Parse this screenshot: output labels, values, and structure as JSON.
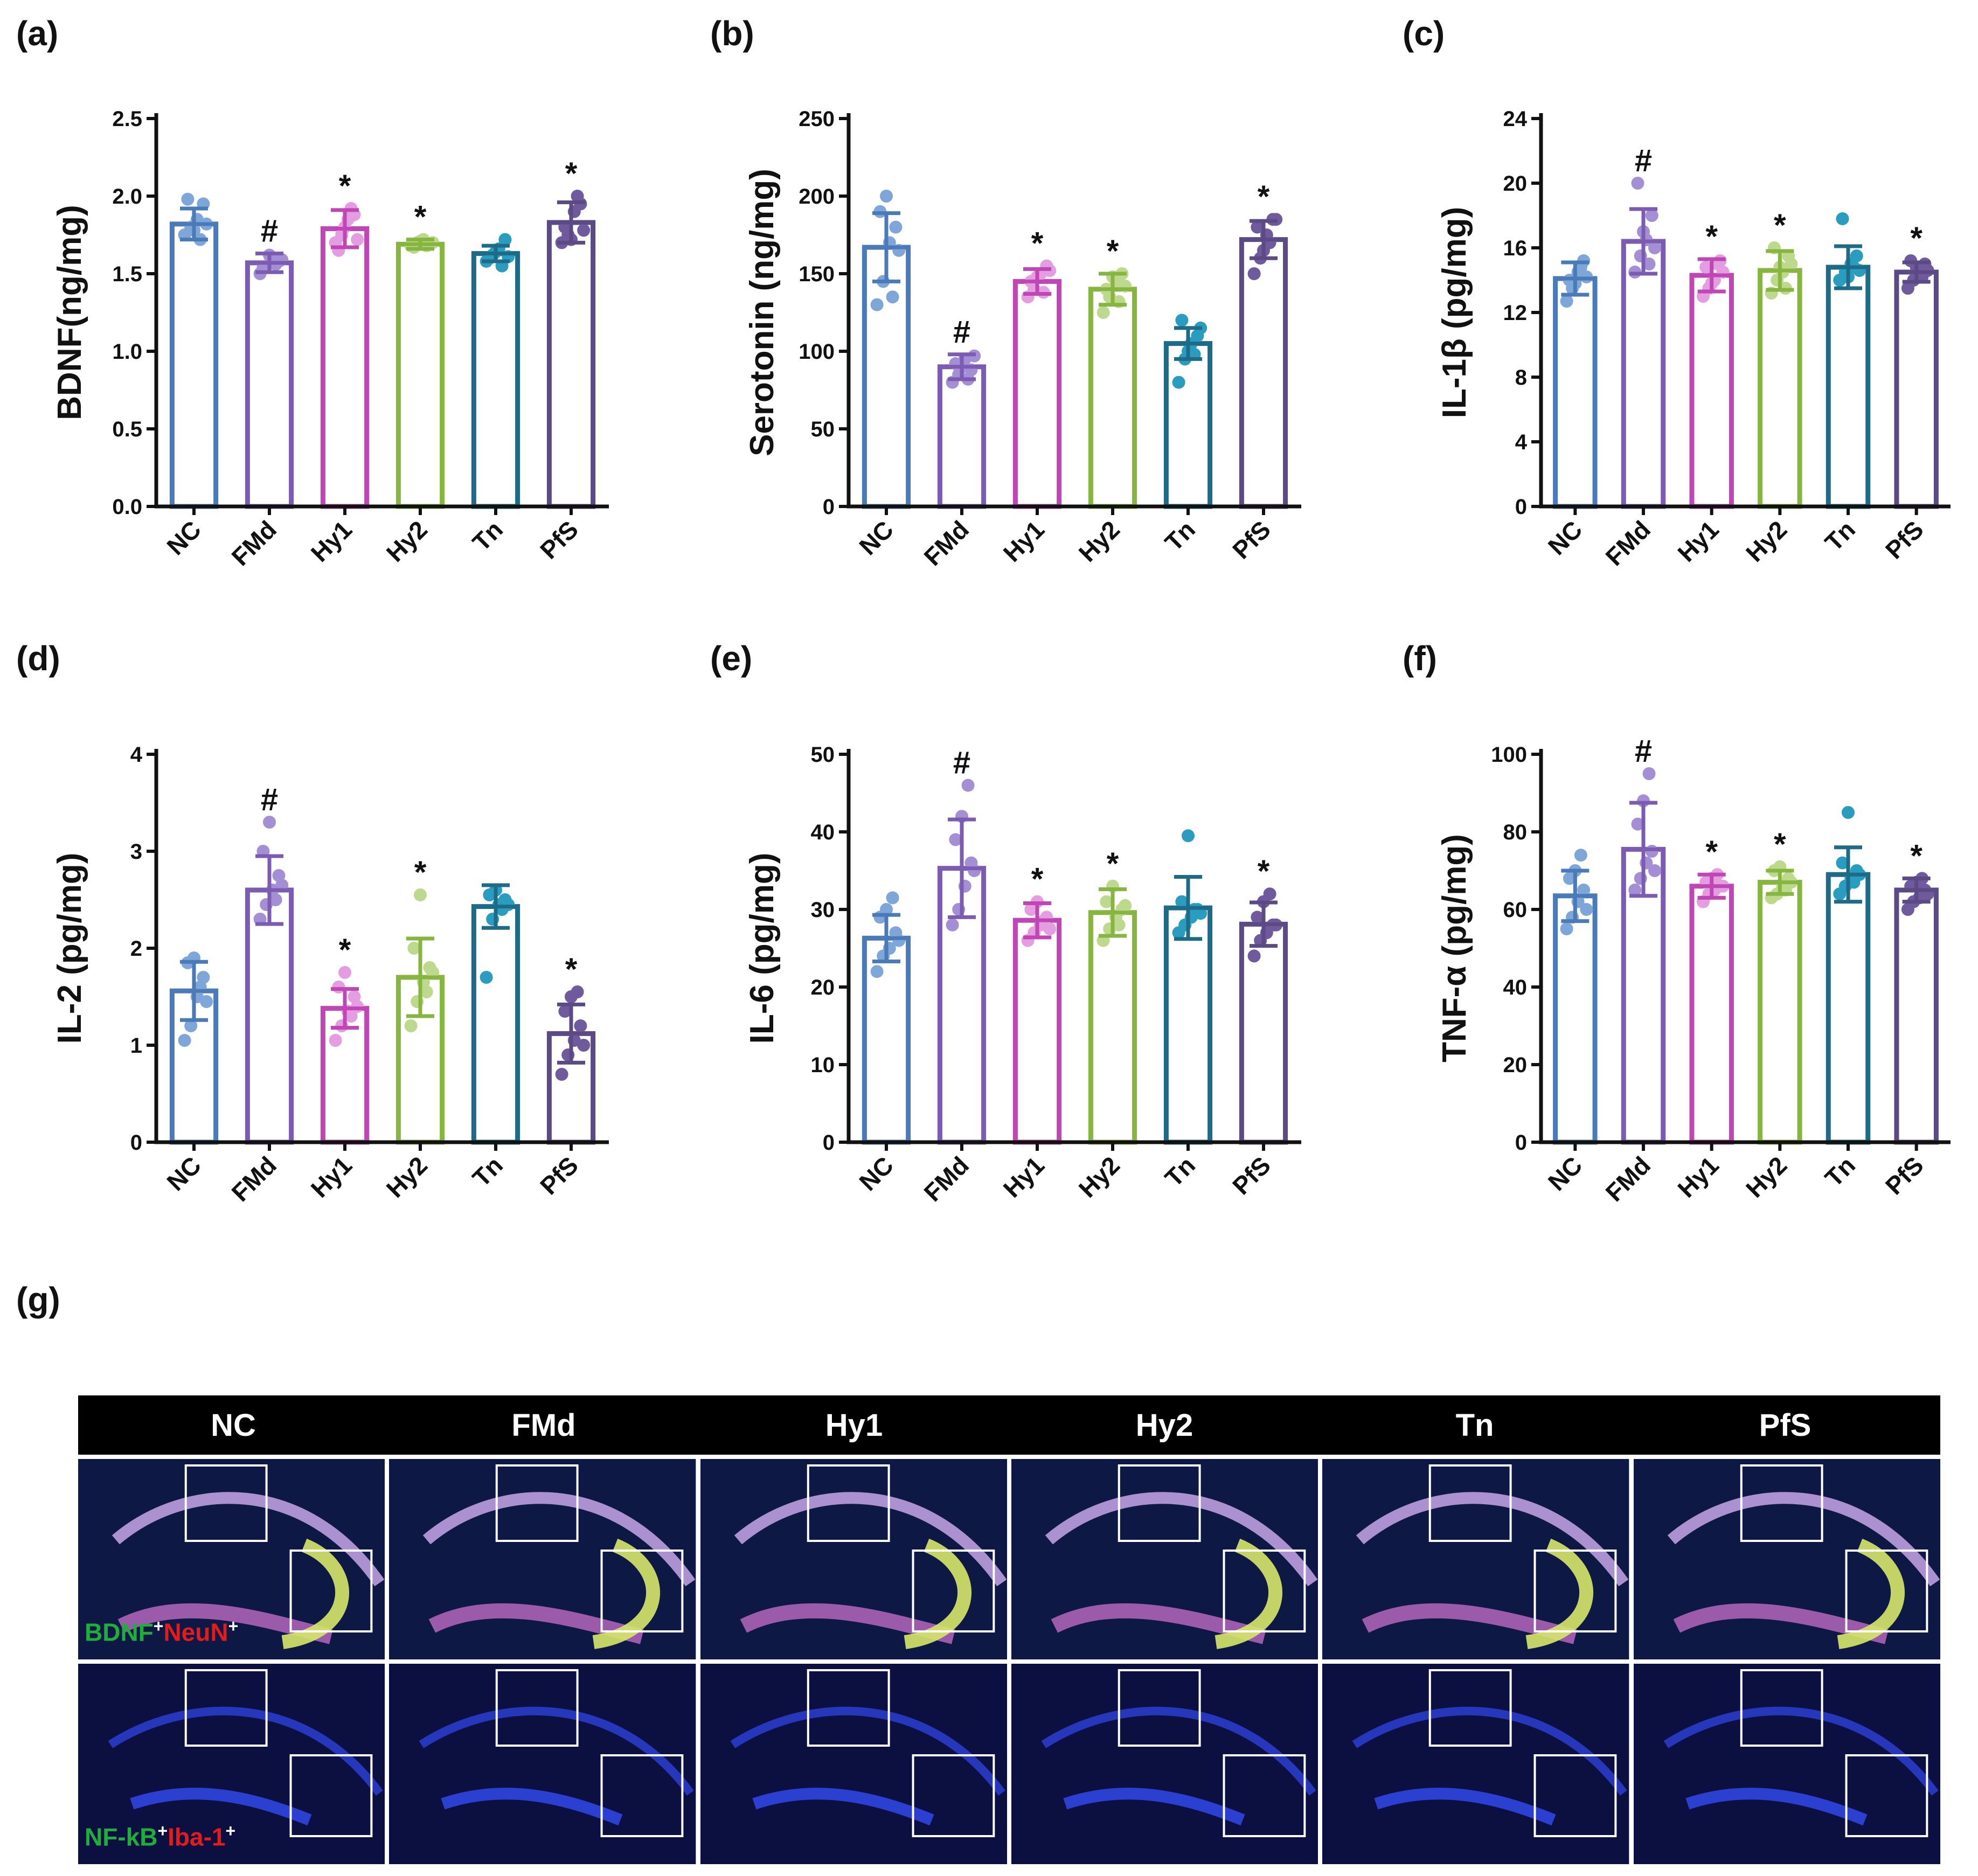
{
  "panels": [
    {
      "letter": "(a)",
      "ylabel": "BDNF(ng/mg)"
    },
    {
      "letter": "(b)",
      "ylabel": "Serotonin (ng/mg)"
    },
    {
      "letter": "(c)",
      "ylabel": "IL-1β (pg/mg)"
    },
    {
      "letter": "(d)",
      "ylabel": "IL-2 (pg/mg)"
    },
    {
      "letter": "(e)",
      "ylabel": "IL-6 (pg/mg)"
    },
    {
      "letter": "(f)",
      "ylabel": "TNF-α (pg/mg)"
    },
    {
      "letter": "(g)"
    }
  ],
  "group_colors": {
    "NC": "#4a7ab7",
    "FMd": "#7c5bb2",
    "Hy1": "#c045b5",
    "Hy2": "#86b640",
    "Tn": "#1e6b88",
    "PfS": "#5c4a85"
  },
  "point_colors": {
    "NC": "#7ea6d8",
    "FMd": "#a58fd4",
    "Hy1": "#e39de0",
    "Hy2": "#bdd98d",
    "Tn": "#2a9cc0",
    "PfS": "#6f5a9e"
  },
  "chart_data": [
    {
      "type": "bar",
      "title": "",
      "ylabel": "BDNF(ng/mg)",
      "categories": [
        "NC",
        "FMd",
        "Hy1",
        "Hy2",
        "Tn",
        "PfS"
      ],
      "values": [
        1.82,
        1.57,
        1.79,
        1.69,
        1.63,
        1.83
      ],
      "errors": [
        0.1,
        0.06,
        0.12,
        0.03,
        0.05,
        0.13
      ],
      "significance": [
        "",
        "#",
        "*",
        "*",
        "",
        "*"
      ],
      "ylim": [
        0,
        2.5
      ],
      "yticks": [
        "0.0",
        "0.5",
        "1.0",
        "1.5",
        "2.0",
        "2.5"
      ],
      "points": [
        [
          1.75,
          1.8,
          1.85,
          1.95,
          1.98,
          1.78,
          1.72,
          1.82
        ],
        [
          1.5,
          1.55,
          1.6,
          1.58,
          1.54,
          1.62,
          1.56,
          1.59
        ],
        [
          1.7,
          1.75,
          1.85,
          1.88,
          1.65,
          1.8,
          1.92,
          1.72
        ],
        [
          1.68,
          1.7,
          1.72,
          1.69,
          1.67,
          1.71,
          1.68,
          1.7
        ],
        [
          1.58,
          1.62,
          1.66,
          1.72,
          1.6,
          1.64,
          1.55,
          1.61
        ],
        [
          1.7,
          1.75,
          1.9,
          1.95,
          1.8,
          1.72,
          2.0,
          1.78
        ]
      ]
    },
    {
      "type": "bar",
      "title": "",
      "ylabel": "Serotonin (ng/mg)",
      "categories": [
        "NC",
        "FMd",
        "Hy1",
        "Hy2",
        "Tn",
        "PfS"
      ],
      "values": [
        167,
        90,
        145,
        140,
        105,
        172
      ],
      "errors": [
        22,
        8,
        8,
        10,
        10,
        12
      ],
      "significance": [
        "",
        "#",
        "*",
        "*",
        "",
        "*"
      ],
      "ylim": [
        0,
        250
      ],
      "yticks": [
        "0",
        "50",
        "100",
        "150",
        "200",
        "250"
      ],
      "points": [
        [
          130,
          145,
          170,
          180,
          190,
          200,
          135,
          165
        ],
        [
          80,
          85,
          95,
          88,
          92,
          90,
          82,
          97
        ],
        [
          135,
          140,
          150,
          155,
          145,
          148,
          138,
          152
        ],
        [
          125,
          135,
          145,
          150,
          140,
          148,
          132,
          142
        ],
        [
          80,
          95,
          105,
          110,
          120,
          100,
          98,
          115
        ],
        [
          150,
          160,
          175,
          185,
          180,
          165,
          170,
          185
        ]
      ]
    },
    {
      "type": "bar",
      "title": "",
      "ylabel": "IL-1β (pg/mg)",
      "categories": [
        "NC",
        "FMd",
        "Hy1",
        "Hy2",
        "Tn",
        "PfS"
      ],
      "values": [
        14.1,
        16.4,
        14.3,
        14.6,
        14.8,
        14.5
      ],
      "errors": [
        1.0,
        2.0,
        1.0,
        1.2,
        1.3,
        0.6
      ],
      "significance": [
        "",
        "#",
        "*",
        "*",
        "",
        "*"
      ],
      "ylim": [
        0,
        24
      ],
      "yticks": [
        "0",
        "4",
        "8",
        "12",
        "16",
        "20",
        "24"
      ],
      "points": [
        [
          12.7,
          13.5,
          14.5,
          15.2,
          14,
          13.8,
          14.8,
          14.2
        ],
        [
          14.5,
          15.5,
          16.5,
          18,
          20,
          17,
          15,
          16
        ],
        [
          13,
          13.5,
          14,
          15.2,
          14.8,
          13.8,
          15,
          14.5
        ],
        [
          13.2,
          14,
          14.5,
          15.5,
          16,
          14.8,
          13.5,
          15
        ],
        [
          14,
          14.5,
          15,
          15.5,
          17.8,
          14.2,
          14.8,
          14.6
        ],
        [
          13.5,
          14,
          14.5,
          15,
          15.2,
          14.8,
          14.2,
          14.6
        ]
      ]
    },
    {
      "type": "bar",
      "title": "",
      "ylabel": "IL-2 (pg/mg)",
      "categories": [
        "NC",
        "FMd",
        "Hy1",
        "Hy2",
        "Tn",
        "PfS"
      ],
      "values": [
        1.56,
        2.6,
        1.38,
        1.7,
        2.43,
        1.12
      ],
      "errors": [
        0.3,
        0.35,
        0.2,
        0.4,
        0.22,
        0.3
      ],
      "significance": [
        "",
        "#",
        "*",
        "*",
        "",
        "*"
      ],
      "ylim": [
        0,
        4
      ],
      "yticks": [
        "0",
        "1",
        "2",
        "3",
        "4"
      ],
      "points": [
        [
          1.05,
          1.2,
          1.5,
          1.7,
          1.85,
          1.9,
          1.6,
          1.45
        ],
        [
          2.3,
          2.45,
          2.6,
          2.75,
          3.0,
          3.3,
          2.5,
          2.65
        ],
        [
          1.05,
          1.2,
          1.35,
          1.5,
          1.6,
          1.75,
          1.3,
          1.4
        ],
        [
          1.2,
          1.45,
          1.65,
          1.8,
          2.0,
          2.55,
          1.55,
          1.75
        ],
        [
          1.7,
          2.3,
          2.45,
          2.5,
          2.55,
          2.6,
          2.4,
          2.45
        ],
        [
          0.7,
          0.9,
          1.05,
          1.2,
          1.35,
          1.5,
          1.55,
          1.0
        ]
      ]
    },
    {
      "type": "bar",
      "title": "",
      "ylabel": "IL-6 (pg/mg)",
      "categories": [
        "NC",
        "FMd",
        "Hy1",
        "Hy2",
        "Tn",
        "PfS"
      ],
      "values": [
        26.3,
        35.3,
        28.6,
        29.6,
        30.2,
        28.1
      ],
      "errors": [
        3.0,
        6.3,
        2.2,
        3.0,
        4.0,
        2.8
      ],
      "significance": [
        "",
        "#",
        "*",
        "*",
        "",
        "*"
      ],
      "ylim": [
        0,
        50
      ],
      "yticks": [
        "0",
        "10",
        "20",
        "30",
        "40",
        "50"
      ],
      "points": [
        [
          22,
          24,
          25,
          27,
          29,
          30,
          31.5,
          26
        ],
        [
          28,
          30,
          33,
          36,
          39,
          42,
          46,
          35
        ],
        [
          26,
          27,
          28,
          29,
          30,
          31,
          28.5,
          27.5
        ],
        [
          26,
          27.5,
          29,
          30,
          31,
          33,
          28,
          30.5
        ],
        [
          27,
          28,
          29,
          30,
          31,
          39.5,
          30,
          29.5
        ],
        [
          24,
          26,
          27,
          28,
          29,
          31,
          32,
          28
        ]
      ]
    },
    {
      "type": "bar",
      "title": "",
      "ylabel": "TNF-α (pg/mg)",
      "categories": [
        "NC",
        "FMd",
        "Hy1",
        "Hy2",
        "Tn",
        "PfS"
      ],
      "values": [
        63.5,
        75.5,
        66,
        67,
        69,
        65
      ],
      "errors": [
        6.5,
        12,
        3,
        3,
        7,
        3
      ],
      "significance": [
        "",
        "#",
        "*",
        "*",
        "",
        "*"
      ],
      "ylim": [
        0,
        100
      ],
      "yticks": [
        "0",
        "20",
        "40",
        "60",
        "80",
        "100"
      ],
      "points": [
        [
          55,
          58,
          62,
          65,
          68,
          70,
          74,
          60
        ],
        [
          65,
          68,
          72,
          75,
          82,
          88,
          95,
          70
        ],
        [
          62,
          64,
          65,
          66,
          67,
          68,
          69,
          66
        ],
        [
          63,
          64,
          66,
          68,
          70,
          71,
          65,
          67
        ],
        [
          64,
          66,
          68,
          70,
          72,
          85,
          67,
          69
        ],
        [
          60,
          62,
          63,
          65,
          66,
          67,
          68,
          64
        ]
      ]
    }
  ],
  "microscopy": {
    "groups": [
      "NC",
      "FMd",
      "Hy1",
      "Hy2",
      "Tn",
      "PfS"
    ],
    "row1_label": {
      "part1": "BDNF",
      "sup1": "+",
      "part2": "NeuN",
      "sup2": "+"
    },
    "row2_label": {
      "part1": "NF-kB",
      "sup1": "+",
      "part2": "Iba-1",
      "sup2": "+"
    }
  }
}
